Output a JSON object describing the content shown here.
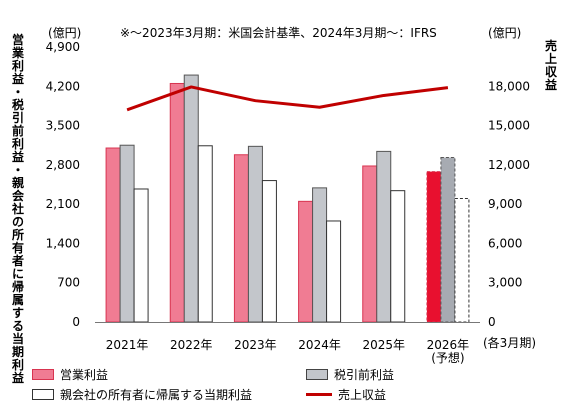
{
  "chart_data": {
    "type": "bar+line",
    "note": "※～2023年3月期：米国会計基準、2024年3月期～：IFRS",
    "left_unit": "(億円)",
    "right_unit": "(億円)",
    "left_title": "営業利益・税引前利益・親会社の所有者に帰属する当期利益",
    "right_title": "売上収益",
    "x_unit": "(各3月期)",
    "categories": [
      "2021年",
      "2022年",
      "2023年",
      "2024年",
      "2025年",
      "2026年"
    ],
    "category_sublabels": [
      "",
      "",
      "",
      "",
      "",
      "(予想)"
    ],
    "left_axis": {
      "min": 0,
      "max": 4900,
      "ticks": [
        0,
        700,
        1400,
        2100,
        2800,
        3500,
        4200,
        4900
      ],
      "tick_labels": [
        "0",
        "700",
        "1,400",
        "2,100",
        "2,800",
        "3,500",
        "4,200",
        "4,900"
      ]
    },
    "right_axis": {
      "min": 0,
      "max": 21000,
      "ticks": [
        0,
        3000,
        6000,
        9000,
        12000,
        15000,
        18000
      ],
      "tick_labels": [
        "0",
        "3,000",
        "6,000",
        "9,000",
        "12,000",
        "15,000",
        "18,000"
      ]
    },
    "series": [
      {
        "name": "営業利益",
        "kind": "bar",
        "axis": "left",
        "values": [
          3100,
          4250,
          2980,
          2150,
          2780,
          2680
        ],
        "color": "#f07c93",
        "forecast_color": "#e8102f"
      },
      {
        "name": "税引前利益",
        "kind": "bar",
        "axis": "left",
        "values": [
          3150,
          4400,
          3130,
          2390,
          3040,
          2930
        ],
        "color": "#c3c6cb",
        "forecast_color": "#a7abb2"
      },
      {
        "name": "親会社の所有者に帰属する当期利益",
        "kind": "bar",
        "axis": "left",
        "values": [
          2370,
          3140,
          2520,
          1800,
          2340,
          2200
        ],
        "color": "#ffffff"
      },
      {
        "name": "売上収益",
        "kind": "line",
        "axis": "right",
        "values": [
          16200,
          17950,
          16900,
          16400,
          17300,
          17900
        ],
        "color": "#c00000"
      }
    ],
    "forecast_index": 5,
    "grid": false,
    "legend_placement": "bottom-left"
  }
}
